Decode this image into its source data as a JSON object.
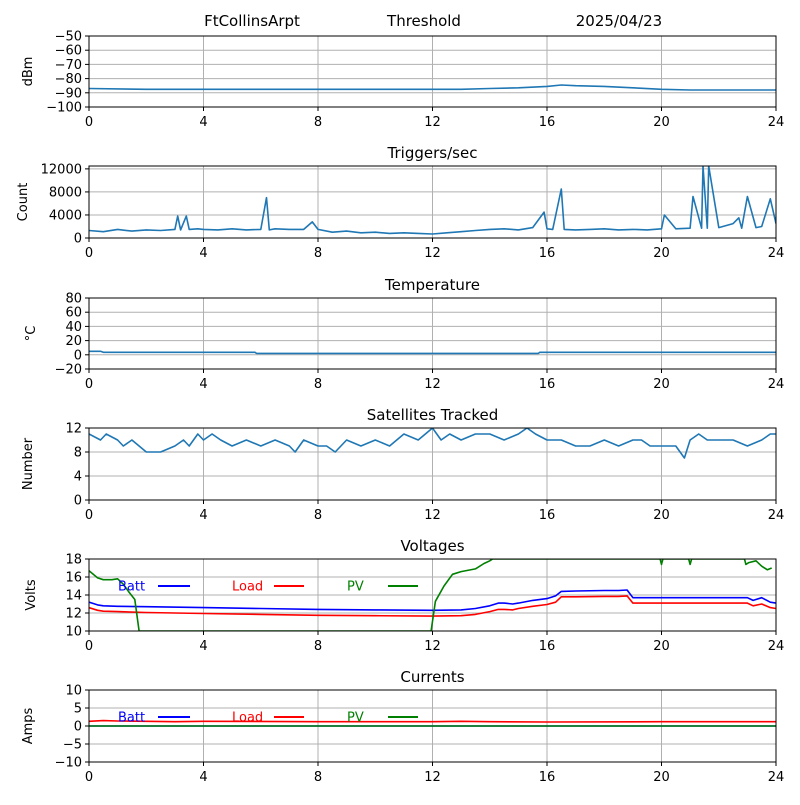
{
  "header": {
    "station": "FtCollinsArpt",
    "mode": "Threshold",
    "date": "2025/04/23"
  },
  "chart_data": [
    {
      "id": "threshold",
      "type": "line",
      "title": "",
      "xlabel": "",
      "ylabel": "dBm",
      "xlim": [
        0,
        24
      ],
      "ylim": [
        -100,
        -50
      ],
      "xticks": [
        0,
        4,
        8,
        12,
        16,
        20,
        24
      ],
      "yticks": [
        -100,
        -90,
        -80,
        -70,
        -60,
        -50
      ],
      "grid": true,
      "series": [
        {
          "color": "#1f77b4",
          "x": [
            0,
            2,
            4,
            6,
            8,
            10,
            12,
            13,
            14,
            15,
            16,
            16.5,
            17,
            18,
            19,
            20,
            21,
            22,
            23,
            24
          ],
          "y": [
            -87,
            -87.5,
            -87.5,
            -87.5,
            -87.5,
            -87.5,
            -87.5,
            -87.5,
            -87,
            -86.5,
            -85.5,
            -84.5,
            -85,
            -85.5,
            -86.5,
            -87.5,
            -88,
            -88,
            -88,
            -88
          ]
        }
      ]
    },
    {
      "id": "triggers",
      "type": "line",
      "title": "Triggers/sec",
      "xlabel": "",
      "ylabel": "Count",
      "xlim": [
        0,
        24
      ],
      "ylim": [
        0,
        12500
      ],
      "xticks": [
        0,
        4,
        8,
        12,
        16,
        20,
        24
      ],
      "yticks": [
        0,
        4000,
        8000,
        12000
      ],
      "grid": true,
      "series": [
        {
          "color": "#1f77b4",
          "x": [
            0,
            0.5,
            1,
            1.5,
            2,
            2.5,
            3,
            3.1,
            3.2,
            3.4,
            3.5,
            3.8,
            4,
            4.5,
            5,
            5.5,
            6,
            6.2,
            6.3,
            6.5,
            7,
            7.5,
            7.8,
            8,
            8.5,
            9,
            9.5,
            10,
            10.5,
            11,
            11.5,
            12,
            12.5,
            13,
            13.5,
            14,
            14.5,
            15,
            15.5,
            15.9,
            16,
            16.2,
            16.5,
            16.6,
            17,
            17.5,
            18,
            18.5,
            19,
            19.5,
            20,
            20.1,
            20.5,
            21,
            21.1,
            21.4,
            21.45,
            21.6,
            21.65,
            22,
            22.5,
            22.7,
            22.8,
            23,
            23.3,
            23.5,
            23.8,
            24
          ],
          "y": [
            1300,
            1100,
            1500,
            1200,
            1400,
            1300,
            1500,
            3800,
            1400,
            3800,
            1500,
            1600,
            1500,
            1400,
            1600,
            1400,
            1500,
            7000,
            1400,
            1600,
            1500,
            1500,
            2800,
            1500,
            1000,
            1200,
            900,
            1000,
            800,
            900,
            800,
            700,
            900,
            1100,
            1300,
            1500,
            1600,
            1400,
            1800,
            4500,
            1600,
            1500,
            8500,
            1500,
            1400,
            1500,
            1600,
            1400,
            1500,
            1400,
            1600,
            4000,
            1600,
            1700,
            7200,
            1700,
            12500,
            1700,
            12500,
            1800,
            2500,
            3500,
            1700,
            7200,
            1800,
            2000,
            6800,
            2500
          ]
        }
      ]
    },
    {
      "id": "temperature",
      "type": "line",
      "title": "Temperature",
      "xlabel": "",
      "ylabel": "°C",
      "xlim": [
        0,
        24
      ],
      "ylim": [
        -20,
        80
      ],
      "xticks": [
        0,
        4,
        8,
        12,
        16,
        20,
        24
      ],
      "yticks": [
        -20,
        0,
        20,
        40,
        60,
        80
      ],
      "grid": true,
      "series": [
        {
          "color": "#1f77b4",
          "x": [
            0,
            0.4,
            0.5,
            5.8,
            5.85,
            15.7,
            15.75,
            24
          ],
          "y": [
            5,
            5,
            3.5,
            3.5,
            2,
            2,
            3.5,
            3.5
          ]
        }
      ]
    },
    {
      "id": "satellites",
      "type": "line",
      "title": "Satellites Tracked",
      "xlabel": "",
      "ylabel": "Number",
      "xlim": [
        0,
        24
      ],
      "ylim": [
        0,
        12
      ],
      "xticks": [
        0,
        4,
        8,
        12,
        16,
        20,
        24
      ],
      "yticks": [
        0,
        4,
        8,
        12
      ],
      "grid": true,
      "series": [
        {
          "color": "#1f77b4",
          "x": [
            0,
            0.4,
            0.6,
            1,
            1.2,
            1.5,
            2,
            2.5,
            3,
            3.3,
            3.5,
            3.8,
            4,
            4.3,
            4.6,
            5,
            5.5,
            6,
            6.5,
            7,
            7.2,
            7.5,
            8,
            8.3,
            8.6,
            9,
            9.5,
            10,
            10.5,
            11,
            11.5,
            12,
            12.3,
            12.6,
            13,
            13.5,
            14,
            14.5,
            15,
            15.3,
            15.6,
            16,
            16.5,
            17,
            17.5,
            18,
            18.5,
            19,
            19.3,
            19.6,
            20,
            20.5,
            20.8,
            21,
            21.3,
            21.6,
            22,
            22.5,
            23,
            23.5,
            23.8,
            24
          ],
          "y": [
            11,
            10,
            11,
            10,
            9,
            10,
            8,
            8,
            9,
            10,
            9,
            11,
            10,
            11,
            10,
            9,
            10,
            9,
            10,
            9,
            8,
            10,
            9,
            9,
            8,
            10,
            9,
            10,
            9,
            11,
            10,
            12,
            10,
            11,
            10,
            11,
            11,
            10,
            11,
            12,
            11,
            10,
            10,
            9,
            9,
            10,
            9,
            10,
            10,
            9,
            9,
            9,
            7,
            10,
            11,
            10,
            10,
            10,
            9,
            10,
            11,
            11
          ]
        }
      ]
    },
    {
      "id": "voltages",
      "type": "line",
      "title": "Voltages",
      "xlabel": "",
      "ylabel": "Volts",
      "xlim": [
        0,
        24
      ],
      "ylim": [
        10,
        18
      ],
      "xticks": [
        0,
        4,
        8,
        12,
        16,
        20,
        24
      ],
      "yticks": [
        10,
        12,
        14,
        16,
        18
      ],
      "grid": true,
      "legend": "top-left",
      "series": [
        {
          "name": "Batt",
          "color": "#0000ff",
          "x": [
            0,
            0.3,
            0.5,
            1,
            2,
            4,
            6,
            8,
            10,
            12,
            13,
            13.5,
            14,
            14.3,
            14.5,
            14.8,
            15,
            15.5,
            16,
            16.3,
            16.5,
            17,
            18,
            18.5,
            18.8,
            19,
            20,
            21,
            22,
            23,
            23.2,
            23.5,
            23.8,
            24
          ],
          "y": [
            13.2,
            12.9,
            12.8,
            12.75,
            12.7,
            12.6,
            12.5,
            12.4,
            12.35,
            12.3,
            12.35,
            12.5,
            12.8,
            13.1,
            13.1,
            13.0,
            13.1,
            13.4,
            13.6,
            13.9,
            14.4,
            14.45,
            14.5,
            14.5,
            14.55,
            13.7,
            13.7,
            13.7,
            13.7,
            13.7,
            13.4,
            13.7,
            13.2,
            13.1
          ]
        },
        {
          "name": "Load",
          "color": "#ff0000",
          "x": [
            0,
            0.3,
            0.5,
            1,
            2,
            4,
            6,
            8,
            10,
            12,
            13,
            13.5,
            14,
            14.3,
            14.5,
            14.8,
            15,
            15.5,
            16,
            16.3,
            16.5,
            17,
            18,
            18.5,
            18.8,
            19,
            20,
            21,
            22,
            23,
            23.2,
            23.5,
            23.8,
            24
          ],
          "y": [
            12.6,
            12.3,
            12.2,
            12.15,
            12.05,
            11.95,
            11.85,
            11.75,
            11.7,
            11.65,
            11.7,
            11.85,
            12.15,
            12.4,
            12.4,
            12.35,
            12.5,
            12.75,
            12.95,
            13.2,
            13.8,
            13.8,
            13.85,
            13.85,
            13.9,
            13.1,
            13.1,
            13.1,
            13.1,
            13.1,
            12.8,
            13.0,
            12.6,
            12.5
          ]
        },
        {
          "name": "PV",
          "color": "#008000",
          "x": [
            0,
            0.3,
            0.5,
            0.8,
            1,
            1.2,
            1.4,
            1.6,
            1.75,
            11.95,
            12.1,
            12.4,
            12.7,
            13,
            13.5,
            13.8,
            14,
            14.1,
            19.95,
            20.0,
            20.05,
            20.95,
            21.0,
            21.05,
            22.9,
            22.95,
            23.05,
            23.3,
            23.5,
            23.7,
            23.85
          ],
          "y": [
            16.7,
            15.9,
            15.7,
            15.7,
            15.8,
            15.2,
            14.3,
            13.5,
            10,
            10,
            13.3,
            15.0,
            16.3,
            16.6,
            16.9,
            17.5,
            17.8,
            18,
            18,
            17.4,
            18,
            18,
            17.4,
            18,
            18,
            17.4,
            17.6,
            17.8,
            17.2,
            16.8,
            17.0
          ]
        }
      ]
    },
    {
      "id": "currents",
      "type": "line",
      "title": "Currents",
      "xlabel": "",
      "ylabel": "Amps",
      "xlim": [
        0,
        24
      ],
      "ylim": [
        -10,
        10
      ],
      "xticks": [
        0,
        4,
        8,
        12,
        16,
        20,
        24
      ],
      "yticks": [
        -10,
        -5,
        0,
        5,
        10
      ],
      "grid": true,
      "legend": "top-left",
      "series": [
        {
          "name": "Batt",
          "color": "#0000ff",
          "x": [
            0,
            24
          ],
          "y": [
            0,
            0
          ]
        },
        {
          "name": "Load",
          "color": "#ff0000",
          "x": [
            0,
            0.5,
            1,
            2,
            3,
            4,
            8,
            12,
            13,
            14,
            16,
            20,
            24
          ],
          "y": [
            1.3,
            1.5,
            1.4,
            1.3,
            1.2,
            1.3,
            1.2,
            1.2,
            1.3,
            1.2,
            1.1,
            1.2,
            1.2
          ]
        },
        {
          "name": "PV",
          "color": "#008000",
          "x": [
            0,
            24
          ],
          "y": [
            0,
            0
          ]
        }
      ]
    }
  ]
}
